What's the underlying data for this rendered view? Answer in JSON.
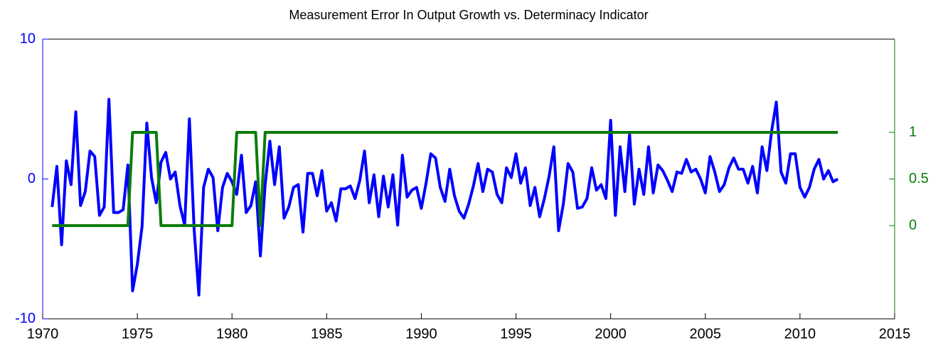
{
  "chart_data": {
    "type": "line",
    "title": "Measurement Error In Output Growth vs. Determinacy Indicator",
    "x": [
      1970.5,
      1970.75,
      1971,
      1971.25,
      1971.5,
      1971.75,
      1972,
      1972.25,
      1972.5,
      1972.75,
      1973,
      1973.25,
      1973.5,
      1973.75,
      1974,
      1974.25,
      1974.5,
      1974.75,
      1975,
      1975.25,
      1975.5,
      1975.75,
      1976,
      1976.25,
      1976.5,
      1976.75,
      1977,
      1977.25,
      1977.5,
      1977.75,
      1978,
      1978.25,
      1978.5,
      1978.75,
      1979,
      1979.25,
      1979.5,
      1979.75,
      1980,
      1980.25,
      1980.5,
      1980.75,
      1981,
      1981.25,
      1981.5,
      1981.75,
      1982,
      1982.25,
      1982.5,
      1982.75,
      1983,
      1983.25,
      1983.5,
      1983.75,
      1984,
      1984.25,
      1984.5,
      1984.75,
      1985,
      1985.25,
      1985.5,
      1985.75,
      1986,
      1986.25,
      1986.5,
      1986.75,
      1987,
      1987.25,
      1987.5,
      1987.75,
      1988,
      1988.25,
      1988.5,
      1988.75,
      1989,
      1989.25,
      1989.5,
      1989.75,
      1990,
      1990.25,
      1990.5,
      1990.75,
      1991,
      1991.25,
      1991.5,
      1991.75,
      1992,
      1992.25,
      1992.5,
      1992.75,
      1993,
      1993.25,
      1993.5,
      1993.75,
      1994,
      1994.25,
      1994.5,
      1994.75,
      1995,
      1995.25,
      1995.5,
      1995.75,
      1996,
      1996.25,
      1996.5,
      1996.75,
      1997,
      1997.25,
      1997.5,
      1997.75,
      1998,
      1998.25,
      1998.5,
      1998.75,
      1999,
      1999.25,
      1999.5,
      1999.75,
      2000,
      2000.25,
      2000.5,
      2000.75,
      2001,
      2001.25,
      2001.5,
      2001.75,
      2002,
      2002.25,
      2002.5,
      2002.75,
      2003,
      2003.25,
      2003.5,
      2003.75,
      2004,
      2004.25,
      2004.5,
      2004.75,
      2005,
      2005.25,
      2005.5,
      2005.75,
      2006,
      2006.25,
      2006.5,
      2006.75,
      2007,
      2007.25,
      2007.5,
      2007.75,
      2008,
      2008.25,
      2008.5,
      2008.75,
      2009,
      2009.25,
      2009.5,
      2009.75,
      2010,
      2010.25,
      2010.5,
      2010.75,
      2011,
      2011.25,
      2011.5,
      2011.75,
      2012
    ],
    "series": [
      {
        "color": "#0000ff",
        "values": [
          -2.0,
          0.9,
          -4.7,
          1.3,
          -0.4,
          4.8,
          -1.9,
          -0.9,
          2.0,
          1.6,
          -2.6,
          -2.0,
          5.7,
          -2.4,
          -2.4,
          -2.2,
          1.0,
          -8.0,
          -6.1,
          -3.4,
          4.0,
          0.1,
          -1.7,
          1.2,
          1.9,
          0,
          0.5,
          -1.9,
          -3.3,
          4.3,
          -3.6,
          -8.3,
          -0.6,
          0.7,
          0.1,
          -3.7,
          -0.6,
          0.4,
          -0.2,
          -1.1,
          1.7,
          -2.4,
          -1.9,
          -0.2,
          -5.5,
          -0.4,
          2.7,
          -0.4,
          2.3,
          -2.8,
          -2.0,
          -0.6,
          -0.4,
          -3.8,
          0.4,
          0.4,
          -1.2,
          0.6,
          -2.3,
          -1.7,
          -3.0,
          -0.7,
          -0.7,
          -0.5,
          -1.4,
          -0.1,
          2.0,
          -1.7,
          0.3,
          -2.7,
          0.2,
          -2.0,
          0.3,
          -3.3,
          1.7,
          -1.3,
          -0.8,
          -0.6,
          -2.1,
          -0.3,
          1.8,
          1.5,
          -0.6,
          -1.6,
          0.7,
          -1.2,
          -2.3,
          -2.8,
          -1.8,
          -0.5,
          1.1,
          -0.9,
          0.7,
          0.5,
          -1.1,
          -1.7,
          0.8,
          0.1,
          1.8,
          -0.3,
          0.8,
          -1.9,
          -0.6,
          -2.7,
          -1.4,
          0.2,
          2.3,
          -3.7,
          -1.8,
          1.1,
          0.5,
          -2.1,
          -2.0,
          -1.4,
          0.8,
          -0.8,
          -0.4,
          -1.4,
          4.2,
          -2.6,
          2.3,
          -0.9,
          3.2,
          -1.8,
          0.7,
          -1.1,
          2.3,
          -1.0,
          1.0,
          0.6,
          -0.1,
          -0.9,
          0.5,
          0.4,
          1.4,
          0.5,
          0.7,
          0,
          -1.0,
          1.6,
          0.5,
          -0.9,
          -0.4,
          0.8,
          1.5,
          0.7,
          0.7,
          -0.3,
          0.9,
          -1.0,
          2.3,
          0.6,
          3.4,
          5.5,
          0.5,
          -0.3,
          1.8,
          1.8,
          -0.6,
          -1.3,
          -0.6,
          0.7,
          1.4,
          0,
          0.6,
          -0.2,
          0
        ]
      },
      {
        "color": "#0a7d0a",
        "axis": "y2",
        "values": [
          0,
          0,
          0,
          0,
          0,
          0,
          0,
          0,
          0,
          0,
          0,
          0,
          0,
          0,
          0,
          0,
          0,
          1,
          1,
          1,
          1,
          1,
          1,
          0,
          0,
          0,
          0,
          0,
          0,
          0,
          0,
          0,
          0,
          0,
          0,
          0,
          0,
          0,
          0,
          1,
          1,
          1,
          1,
          1,
          0,
          1,
          1,
          1,
          1,
          1,
          1,
          1,
          1,
          1,
          1,
          1,
          1,
          1,
          1,
          1,
          1,
          1,
          1,
          1,
          1,
          1,
          1,
          1,
          1,
          1,
          1,
          1,
          1,
          1,
          1,
          1,
          1,
          1,
          1,
          1,
          1,
          1,
          1,
          1,
          1,
          1,
          1,
          1,
          1,
          1,
          1,
          1,
          1,
          1,
          1,
          1,
          1,
          1,
          1,
          1,
          1,
          1,
          1,
          1,
          1,
          1,
          1,
          1,
          1,
          1,
          1,
          1,
          1,
          1,
          1,
          1,
          1,
          1,
          1,
          1,
          1,
          1,
          1,
          1,
          1,
          1,
          1,
          1,
          1,
          1,
          1,
          1,
          1,
          1,
          1,
          1,
          1,
          1,
          1,
          1,
          1,
          1,
          1,
          1,
          1,
          1,
          1,
          1,
          1,
          1,
          1,
          1,
          1,
          1,
          1,
          1,
          1,
          1,
          1,
          1,
          1,
          1,
          1,
          1,
          1,
          1,
          1
        ]
      }
    ],
    "xlim": [
      1970,
      2015
    ],
    "xticks": [
      1970,
      1975,
      1980,
      1985,
      1990,
      1995,
      2000,
      2005,
      2010,
      2015
    ],
    "ylim": [
      -10,
      10
    ],
    "yticks": [
      -10,
      0,
      10
    ],
    "ycolor": "#0000ff",
    "y2lim": [
      -1,
      2
    ],
    "y2ticks": [
      0,
      0.5,
      1
    ],
    "y2color": "#0a7d0a"
  }
}
